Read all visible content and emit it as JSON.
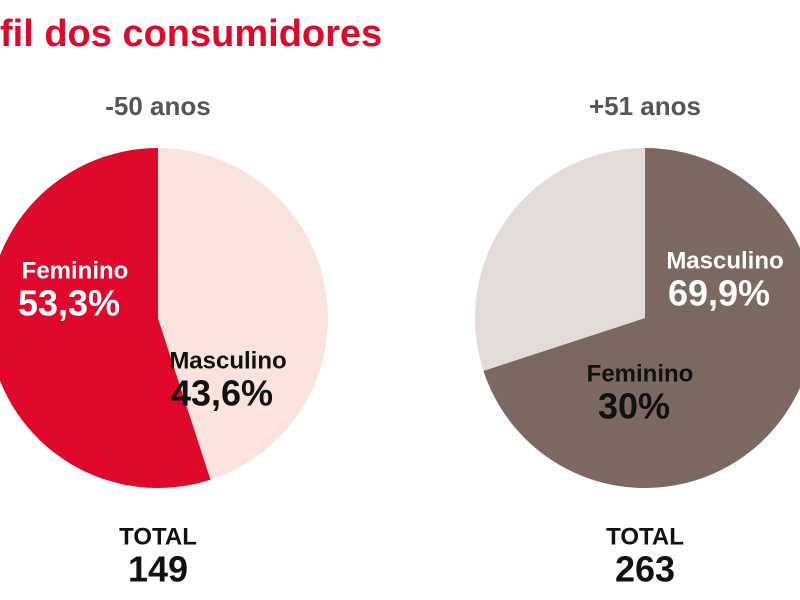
{
  "title": "fil dos consumidores",
  "chart_data": [
    {
      "type": "pie",
      "title": "-50 anos",
      "categories": [
        "Feminino",
        "Masculino"
      ],
      "values": [
        53.3,
        43.6
      ],
      "value_labels": [
        "53,3%",
        "43,6%"
      ],
      "colors": [
        "#e0082a",
        "#fbe3dd"
      ],
      "label_colors": [
        "#ffffff",
        "#111111"
      ],
      "total_label": "TOTAL",
      "total": 149
    },
    {
      "type": "pie",
      "title": "+51 anos",
      "categories": [
        "Masculino",
        "Feminino"
      ],
      "values": [
        69.9,
        30
      ],
      "value_labels": [
        "69,9%",
        "30%"
      ],
      "colors": [
        "#7b6860",
        "#e2dbd8"
      ],
      "label_colors": [
        "#ffffff",
        "#111111"
      ],
      "total_label": "TOTAL",
      "total": 263
    }
  ]
}
